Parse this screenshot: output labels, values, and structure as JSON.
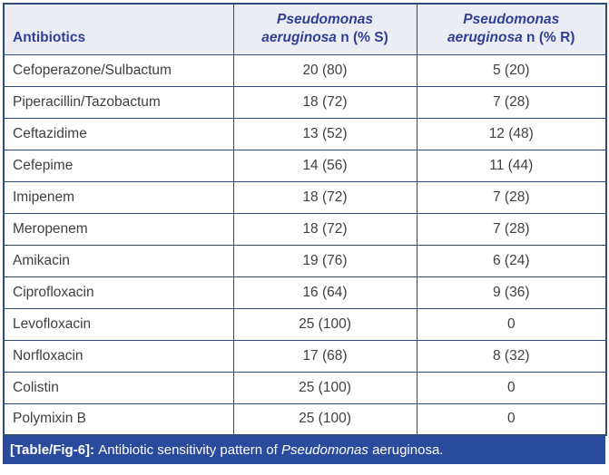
{
  "colors": {
    "header_bg": "#ECEDF4",
    "header_text": "#2e3f94",
    "grid_border": "#2d4a7a",
    "body_text": "#404040",
    "caption_bg": "#2a4b9d",
    "caption_text": "#ffffff"
  },
  "table": {
    "header": {
      "col_antibiotics": "Antibiotics",
      "col_s": {
        "genus": "Pseudomonas",
        "species": "aeruginosa",
        "suffix": " n (% S)"
      },
      "col_r": {
        "genus": "Pseudomonas",
        "species": "aeruginosa",
        "suffix": " n (% R)"
      }
    },
    "rows": [
      {
        "name": "Cefoperazone/Sulbactum",
        "s": "20 (80)",
        "r": "5 (20)"
      },
      {
        "name": "Piperacillin/Tazobactum",
        "s": "18 (72)",
        "r": "7 (28)"
      },
      {
        "name": "Ceftazidime",
        "s": "13 (52)",
        "r": "12 (48)"
      },
      {
        "name": "Cefepime",
        "s": "14 (56)",
        "r": "11 (44)"
      },
      {
        "name": "Imipenem",
        "s": "18 (72)",
        "r": "7 (28)"
      },
      {
        "name": "Meropenem",
        "s": "18 (72)",
        "r": "7 (28)"
      },
      {
        "name": "Amikacin",
        "s": "19 (76)",
        "r": "6 (24)"
      },
      {
        "name": "Ciprofloxacin",
        "s": "16 (64)",
        "r": "9 (36)"
      },
      {
        "name": "Levofloxacin",
        "s": "25 (100)",
        "r": "0"
      },
      {
        "name": "Norfloxacin",
        "s": "17 (68)",
        "r": "8 (32)"
      },
      {
        "name": "Colistin",
        "s": "25 (100)",
        "r": "0"
      },
      {
        "name": "Polymixin B",
        "s": "25 (100)",
        "r": "0"
      }
    ],
    "caption": {
      "label": "[Table/Fig-6]:",
      "before_italic": " Antibiotic sensitivity pattern of ",
      "italic": "Pseudomonas",
      "after_italic": " aeruginosa."
    }
  },
  "chart_data": {
    "type": "table",
    "title": "[Table/Fig-6]: Antibiotic sensitivity pattern of Pseudomonas aeruginosa.",
    "columns": [
      "Antibiotics",
      "Pseudomonas aeruginosa n (% S)",
      "Pseudomonas aeruginosa n (% R)"
    ],
    "rows": [
      [
        "Cefoperazone/Sulbactum",
        "20 (80)",
        "5 (20)"
      ],
      [
        "Piperacillin/Tazobactum",
        "18 (72)",
        "7 (28)"
      ],
      [
        "Ceftazidime",
        "13 (52)",
        "12 (48)"
      ],
      [
        "Cefepime",
        "14 (56)",
        "11 (44)"
      ],
      [
        "Imipenem",
        "18 (72)",
        "7 (28)"
      ],
      [
        "Meropenem",
        "18 (72)",
        "7 (28)"
      ],
      [
        "Amikacin",
        "19 (76)",
        "6 (24)"
      ],
      [
        "Ciprofloxacin",
        "16 (64)",
        "9 (36)"
      ],
      [
        "Levofloxacin",
        "25 (100)",
        "0"
      ],
      [
        "Norfloxacin",
        "17 (68)",
        "8 (32)"
      ],
      [
        "Colistin",
        "25 (100)",
        "0"
      ],
      [
        "Polymixin B",
        "25 (100)",
        "0"
      ]
    ]
  }
}
